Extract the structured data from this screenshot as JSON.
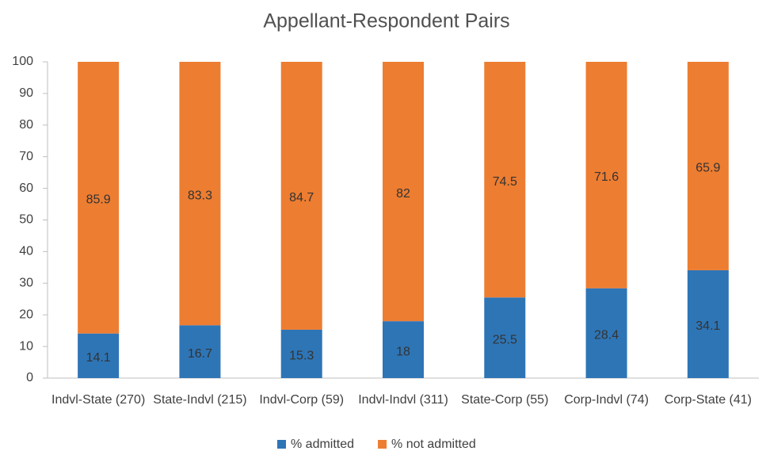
{
  "chart_data": {
    "type": "stacked_bar",
    "title": "Appellant-Respondent Pairs",
    "categories": [
      "Indvl-State (270)",
      "State-Indvl (215)",
      "Indvl-Corp (59)",
      "Indvl-Indvl (311)",
      "State-Corp (55)",
      "Corp-Indvl (74)",
      "Corp-State (41)"
    ],
    "series": [
      {
        "name": "% admitted",
        "color": "#2e75b6",
        "values": [
          14.1,
          16.7,
          15.3,
          18,
          25.5,
          28.4,
          34.1
        ]
      },
      {
        "name": "% not admitted",
        "color": "#ed7d31",
        "values": [
          85.9,
          83.3,
          84.7,
          82,
          74.5,
          71.6,
          65.9
        ]
      }
    ],
    "ylim": [
      0,
      100
    ],
    "yticks": [
      0,
      10,
      20,
      30,
      40,
      50,
      60,
      70,
      80,
      90,
      100
    ],
    "grid": false,
    "legend": "bottom"
  }
}
